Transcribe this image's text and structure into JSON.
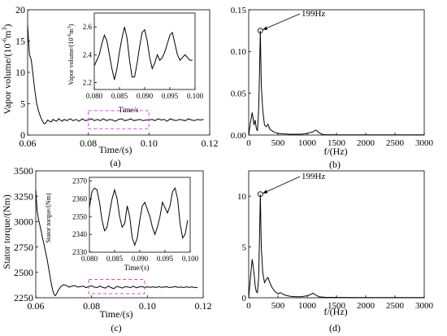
{
  "chart_data": [
    {
      "panel": "(a)",
      "type": "line",
      "xlabel": "Time/(s)",
      "ylabel": "Vapor volume/(10",
      "ylabel_sup": "-6",
      "ylabel_tail": "m",
      "ylabel_sup2": "3",
      "ylabel_close": ")",
      "xlim": [
        0.06,
        0.12
      ],
      "ylim": [
        0,
        20
      ],
      "xticks": [
        "0.06",
        "0.08",
        "0.10",
        "0.12"
      ],
      "yticks": [
        "0",
        "5",
        "10",
        "15",
        "20"
      ],
      "series": [
        {
          "x": [
            0.06,
            0.0606,
            0.0612,
            0.0618,
            0.0624,
            0.063,
            0.0636,
            0.0642,
            0.0648,
            0.0654,
            0.066,
            0.0666,
            0.0672,
            0.0678,
            0.0684,
            0.069,
            0.0696,
            0.0702,
            0.0708,
            0.0714,
            0.072,
            0.073,
            0.074,
            0.075,
            0.076,
            0.077,
            0.078,
            0.079,
            0.08,
            0.081,
            0.082,
            0.083,
            0.084,
            0.085,
            0.086,
            0.087,
            0.088,
            0.089,
            0.09,
            0.091,
            0.092,
            0.093,
            0.094,
            0.095,
            0.096,
            0.097,
            0.098,
            0.099,
            0.1,
            0.101,
            0.102,
            0.103,
            0.104,
            0.105,
            0.106,
            0.107,
            0.108,
            0.109,
            0.11,
            0.111,
            0.112,
            0.113,
            0.114,
            0.115,
            0.116,
            0.117,
            0.118
          ],
          "y": [
            17.5,
            12.8,
            12.0,
            9.5,
            7.0,
            5.0,
            3.8,
            3.0,
            2.3,
            1.8,
            1.9,
            2.4,
            2.2,
            2.1,
            2.5,
            2.3,
            2.2,
            2.6,
            2.4,
            2.2,
            2.5,
            2.3,
            2.6,
            2.3,
            2.5,
            2.2,
            2.6,
            2.3,
            2.4,
            2.6,
            2.3,
            2.5,
            2.3,
            2.6,
            2.3,
            2.5,
            2.4,
            2.2,
            2.5,
            2.6,
            2.3,
            2.4,
            2.6,
            2.3,
            2.4,
            2.5,
            2.3,
            2.4,
            2.4,
            2.5,
            2.3,
            2.6,
            2.4,
            2.5,
            2.2,
            2.6,
            2.4,
            2.3,
            2.5,
            2.4,
            2.3,
            2.6,
            2.4,
            2.3,
            2.5,
            2.4,
            2.5
          ]
        }
      ],
      "annotation_box": {
        "x": [
          0.08,
          0.1
        ],
        "y": [
          1.0,
          3.9
        ]
      },
      "inset": {
        "xlabel": "Time/s",
        "ylabel": "Vapor volume/(10",
        "ylabel_sup": "-6",
        "ylabel_tail": "m",
        "ylabel_sup2": "3",
        "ylabel_close": ")",
        "xlim": [
          0.08,
          0.1
        ],
        "ylim": [
          2.15,
          2.7
        ],
        "xticks": [
          "0.080",
          "0.085",
          "0.090",
          "0.095",
          "0.100"
        ],
        "yticks": [
          "2.2",
          "2.4",
          "2.6"
        ],
        "x": [
          0.08,
          0.0805,
          0.081,
          0.0815,
          0.082,
          0.0825,
          0.083,
          0.0835,
          0.084,
          0.0845,
          0.085,
          0.0855,
          0.086,
          0.0865,
          0.087,
          0.0875,
          0.088,
          0.0885,
          0.089,
          0.0895,
          0.09,
          0.0905,
          0.091,
          0.0915,
          0.092,
          0.0925,
          0.093,
          0.0935,
          0.094,
          0.0945,
          0.095,
          0.0955,
          0.096,
          0.0965,
          0.097,
          0.0975,
          0.098,
          0.0985,
          0.099,
          0.0995
        ],
        "y": [
          2.32,
          2.36,
          2.4,
          2.48,
          2.54,
          2.5,
          2.4,
          2.3,
          2.22,
          2.3,
          2.42,
          2.52,
          2.6,
          2.52,
          2.36,
          2.24,
          2.24,
          2.34,
          2.46,
          2.56,
          2.58,
          2.5,
          2.38,
          2.3,
          2.34,
          2.4,
          2.36,
          2.38,
          2.42,
          2.48,
          2.54,
          2.56,
          2.48,
          2.4,
          2.36,
          2.38,
          2.4,
          2.38,
          2.36,
          2.36
        ]
      }
    },
    {
      "panel": "(b)",
      "type": "line",
      "xlabel": "f/(Hz)",
      "xlim": [
        0,
        3000
      ],
      "ylim": [
        0,
        0.15
      ],
      "xticks": [
        "0",
        "500",
        "1000",
        "1500",
        "2000",
        "2500",
        "3000"
      ],
      "yticks": [
        "0.00",
        "0.05",
        "0.10",
        "0.15"
      ],
      "series": [
        {
          "x": [
            0,
            30,
            60,
            90,
            110,
            130,
            150,
            170,
            185,
            199,
            215,
            240,
            270,
            300,
            330,
            360,
            400,
            450,
            500,
            600,
            700,
            800,
            900,
            1000,
            1050,
            1100,
            1150,
            1200,
            1250,
            1300,
            1500,
            2000,
            2500,
            3000
          ],
          "y": [
            0.0,
            0.015,
            0.027,
            0.012,
            0.018,
            0.008,
            0.005,
            0.03,
            0.075,
            0.125,
            0.06,
            0.03,
            0.012,
            0.01,
            0.013,
            0.007,
            0.005,
            0.003,
            0.002,
            0.0015,
            0.001,
            0.001,
            0.001,
            0.002,
            0.003,
            0.004,
            0.006,
            0.003,
            0.001,
            0.0005,
            0.0003,
            0.0002,
            0.0002,
            0.0002
          ]
        }
      ],
      "peak": {
        "x": 199,
        "y": 0.125,
        "label": "199Hz"
      }
    },
    {
      "panel": "(c)",
      "type": "line",
      "xlabel": "Time/(s)",
      "ylabel": "Stator torque/(Nm)",
      "xlim": [
        0.06,
        0.12
      ],
      "ylim": [
        2250,
        3500
      ],
      "xticks": [
        "0.06",
        "0.08",
        "0.10",
        "0.12"
      ],
      "yticks": [
        "2250",
        "2500",
        "2750",
        "3000",
        "3250",
        "3500"
      ],
      "series": [
        {
          "x": [
            0.06,
            0.0605,
            0.061,
            0.0615,
            0.062,
            0.0625,
            0.063,
            0.0635,
            0.064,
            0.0645,
            0.065,
            0.0655,
            0.066,
            0.0665,
            0.067,
            0.0675,
            0.068,
            0.069,
            0.07,
            0.071,
            0.072,
            0.073,
            0.074,
            0.075,
            0.076,
            0.077,
            0.078,
            0.079,
            0.08,
            0.081,
            0.082,
            0.083,
            0.084,
            0.085,
            0.086,
            0.087,
            0.088,
            0.089,
            0.09,
            0.091,
            0.092,
            0.093,
            0.094,
            0.095,
            0.096,
            0.097,
            0.098,
            0.099,
            0.1,
            0.101,
            0.102,
            0.103,
            0.104,
            0.105,
            0.106,
            0.107,
            0.108,
            0.109,
            0.11,
            0.111,
            0.112,
            0.113,
            0.114,
            0.115,
            0.116,
            0.117,
            0.118
          ],
          "y": [
            3310,
            3100,
            3020,
            2960,
            2900,
            2830,
            2770,
            2700,
            2640,
            2560,
            2480,
            2400,
            2330,
            2285,
            2270,
            2290,
            2320,
            2360,
            2380,
            2370,
            2355,
            2365,
            2370,
            2355,
            2360,
            2365,
            2350,
            2360,
            2368,
            2355,
            2350,
            2366,
            2352,
            2345,
            2366,
            2350,
            2340,
            2362,
            2355,
            2345,
            2360,
            2355,
            2350,
            2365,
            2348,
            2355,
            2362,
            2350,
            2357,
            2352,
            2358,
            2350,
            2360,
            2352,
            2355,
            2358,
            2350,
            2355,
            2360,
            2352,
            2356,
            2350,
            2358,
            2352,
            2356,
            2350,
            2352
          ]
        }
      ],
      "annotation_box": {
        "x": [
          0.079,
          0.099
        ],
        "y": [
          2290,
          2430
        ]
      },
      "inset": {
        "xlabel": "Time/(s)",
        "ylabel": "Stator torque/(Nm)",
        "xlim": [
          0.08,
          0.1
        ],
        "ylim": [
          2330,
          2372
        ],
        "xticks": [
          "0.080",
          "0.085",
          "0.090",
          "0.095",
          "0.100"
        ],
        "yticks": [
          "2330",
          "2340",
          "2350",
          "2360",
          "2370"
        ],
        "x": [
          0.08,
          0.0805,
          0.081,
          0.0815,
          0.082,
          0.0825,
          0.083,
          0.0835,
          0.084,
          0.0845,
          0.085,
          0.0855,
          0.086,
          0.0865,
          0.087,
          0.0875,
          0.088,
          0.0885,
          0.089,
          0.0895,
          0.09,
          0.0905,
          0.091,
          0.0915,
          0.092,
          0.0925,
          0.093,
          0.0935,
          0.094,
          0.0945,
          0.095,
          0.0955,
          0.096,
          0.0965,
          0.097,
          0.0975,
          0.098,
          0.0985,
          0.099,
          0.0995
        ],
        "y": [
          2355,
          2364,
          2366,
          2365,
          2358,
          2348,
          2342,
          2344,
          2352,
          2360,
          2365,
          2360,
          2350,
          2344,
          2346,
          2356,
          2350,
          2338,
          2334,
          2338,
          2348,
          2356,
          2358,
          2354,
          2350,
          2344,
          2340,
          2344,
          2350,
          2358,
          2355,
          2352,
          2356,
          2364,
          2366,
          2360,
          2346,
          2338,
          2340,
          2348
        ]
      }
    },
    {
      "panel": "(d)",
      "type": "line",
      "xlabel": "f/(Hz)",
      "xlim": [
        0,
        3000
      ],
      "ylim": [
        0,
        12.5
      ],
      "xticks": [
        "0",
        "500",
        "1000",
        "1500",
        "2000",
        "2500",
        "3000"
      ],
      "yticks": [
        "0",
        "5",
        "10"
      ],
      "series": [
        {
          "x": [
            0,
            30,
            60,
            90,
            110,
            130,
            150,
            170,
            185,
            199,
            215,
            240,
            270,
            300,
            330,
            360,
            400,
            450,
            500,
            550,
            600,
            700,
            800,
            900,
            1000,
            1050,
            1100,
            1150,
            1200,
            1300,
            1500,
            2000,
            2500,
            3000
          ],
          "y": [
            0.0,
            2.0,
            3.8,
            2.5,
            1.2,
            0.6,
            0.5,
            2.0,
            6.0,
            10.2,
            5.0,
            2.5,
            1.5,
            1.8,
            2.0,
            1.5,
            1.0,
            0.6,
            0.4,
            0.5,
            0.3,
            0.15,
            0.1,
            0.1,
            0.2,
            0.3,
            0.45,
            0.25,
            0.1,
            0.05,
            0.03,
            0.02,
            0.02,
            0.02
          ]
        }
      ],
      "peak": {
        "x": 199,
        "y": 10.2,
        "label": "199Hz"
      }
    }
  ]
}
